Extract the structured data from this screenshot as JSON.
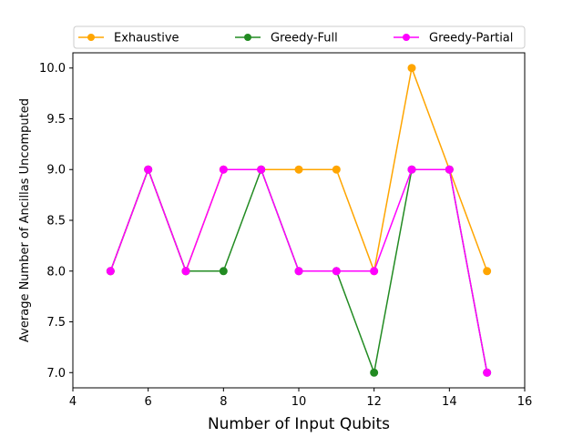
{
  "chart_data": {
    "type": "line",
    "title": "",
    "xlabel": "Number of Input Qubits",
    "ylabel": "Average Number of Ancillas Uncomputed",
    "xlim": [
      4,
      16
    ],
    "ylim": [
      6.85,
      10.15
    ],
    "xticks": [
      4,
      6,
      8,
      10,
      12,
      14,
      16
    ],
    "yticks": [
      7.0,
      7.5,
      8.0,
      8.5,
      9.0,
      9.5,
      10.0
    ],
    "xtick_labels": [
      "4",
      "6",
      "8",
      "10",
      "12",
      "14",
      "16"
    ],
    "ytick_labels": [
      "7.0",
      "7.5",
      "8.0",
      "8.5",
      "9.0",
      "9.5",
      "10.0"
    ],
    "grid": false,
    "legend_position": "top",
    "x": [
      5,
      6,
      7,
      8,
      9,
      10,
      11,
      12,
      13,
      14,
      15
    ],
    "series": [
      {
        "name": "Exhaustive",
        "color": "#ffa500",
        "marker": "circle",
        "values": [
          8,
          9,
          8,
          9,
          9,
          9,
          9,
          8,
          10,
          9,
          8
        ]
      },
      {
        "name": "Greedy-Full",
        "color": "#228b22",
        "marker": "circle",
        "values": [
          8,
          9,
          8,
          8,
          9,
          8,
          8,
          7,
          9,
          9,
          7
        ]
      },
      {
        "name": "Greedy-Partial",
        "color": "#ff00ff",
        "marker": "circle",
        "values": [
          8,
          9,
          8,
          9,
          9,
          8,
          8,
          8,
          9,
          9,
          7
        ]
      }
    ]
  }
}
